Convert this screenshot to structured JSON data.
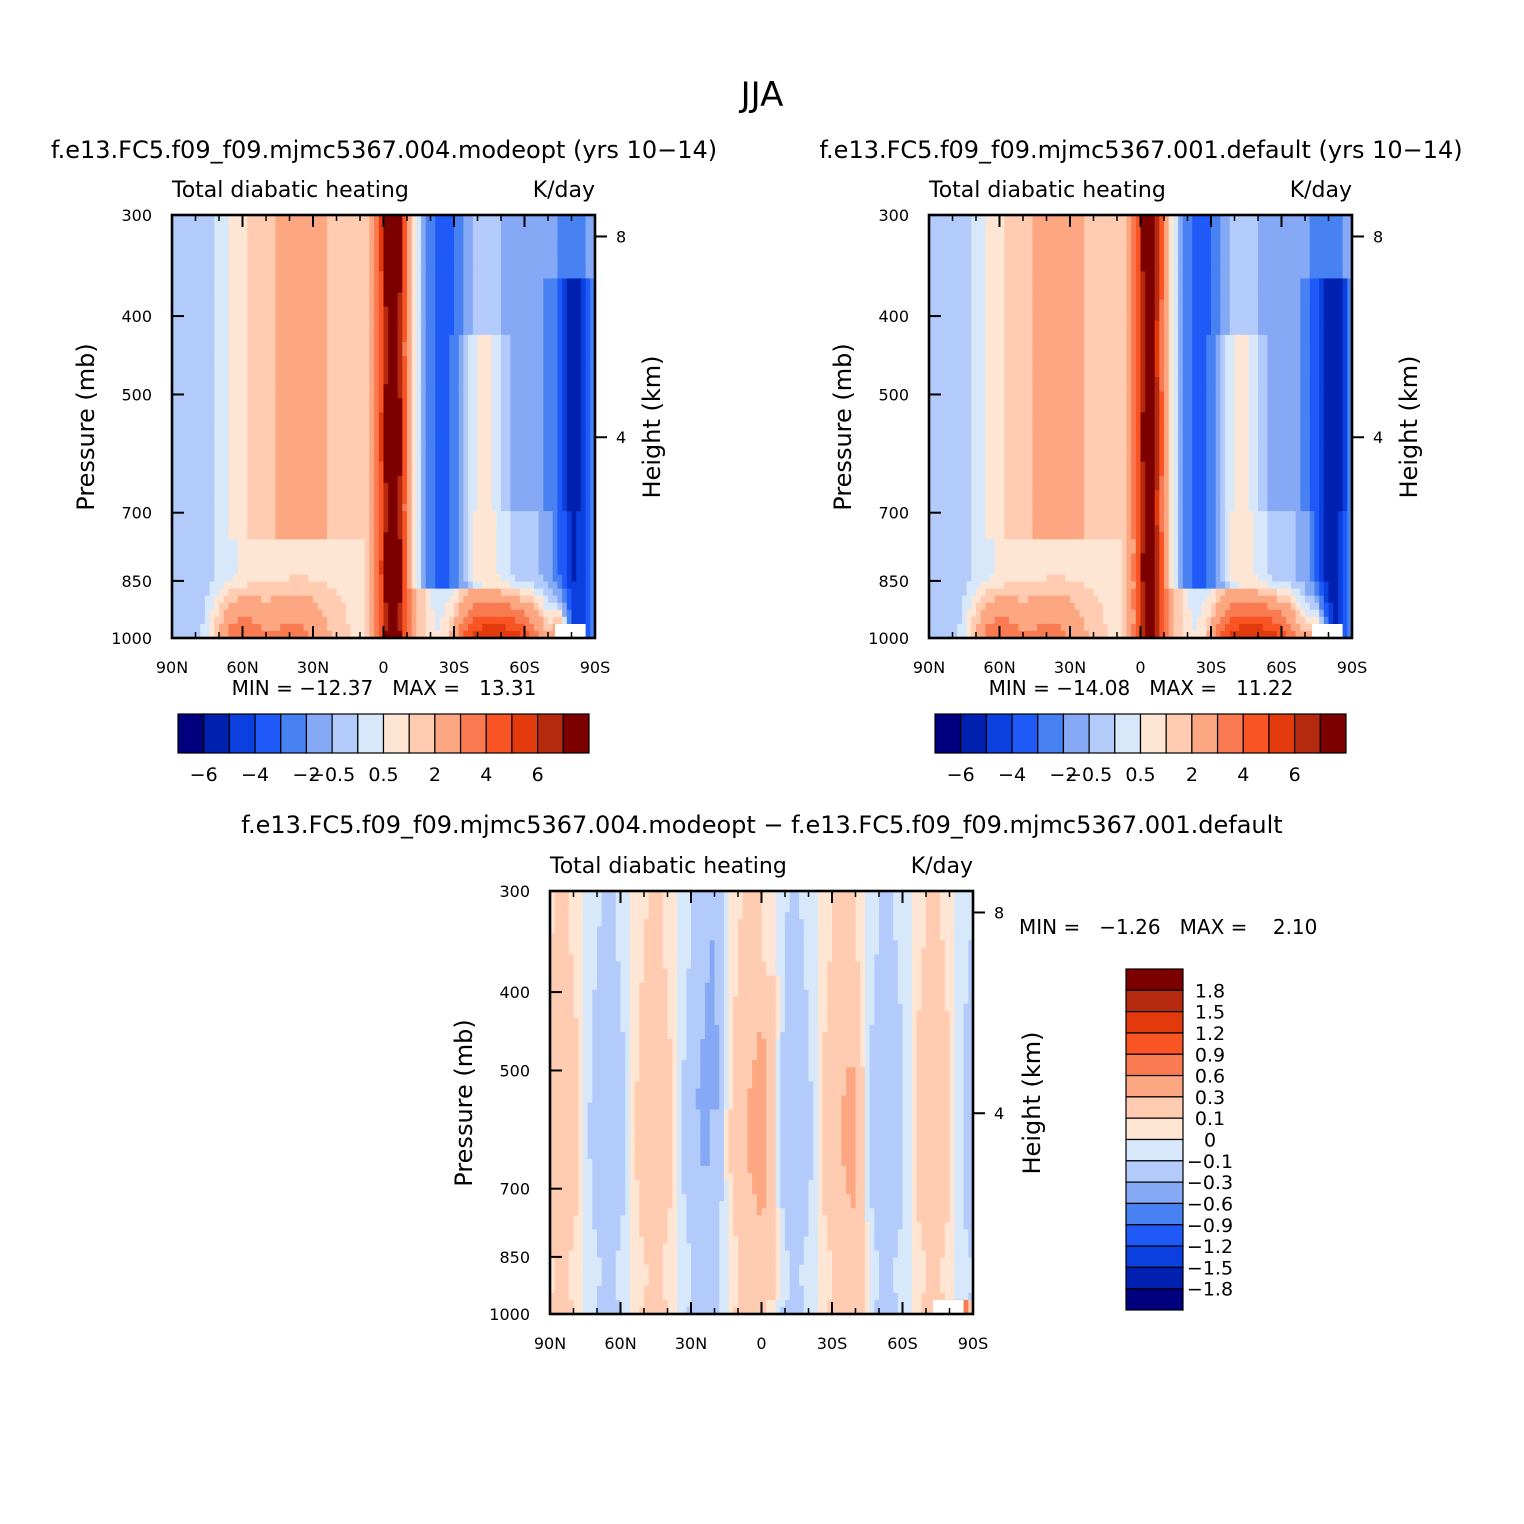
{
  "figure": {
    "title": "JJA",
    "colors": {
      "div_full": [
        "#00007f",
        "#0021b0",
        "#0b3fe0",
        "#1f5af8",
        "#4882f2",
        "#85a9f5",
        "#b3cbfb",
        "#d8e8fb",
        "#ffe6d4",
        "#ffcbb1",
        "#fca781",
        "#fa7b51",
        "#f85424",
        "#e23a0c",
        "#b52a0f",
        "#7c0000"
      ],
      "div_diff": [
        "#00007f",
        "#0021b0",
        "#0b3fe0",
        "#1f5af8",
        "#4882f2",
        "#85a9f5",
        "#b3cbfb",
        "#d8e8fb",
        "#ffe6d4",
        "#ffcbb1",
        "#fca781",
        "#fa7b51",
        "#f85424",
        "#e23a0c",
        "#b52a0f",
        "#7c0000"
      ]
    },
    "color_mapping": "diverging blue-white-red"
  },
  "panels": [
    {
      "case_title": "f.e13.FC5.f09_f09.mjmc5367.004.modeopt (yrs 10−14)",
      "left_label": "Total diabatic heating",
      "right_label": "K/day",
      "ylabel": "Pressure (mb)",
      "ylabel2": "Height (km)",
      "minmax": "MIN = −12.37   MAX =   13.31",
      "colorbar_labels": [
        "−6",
        "−4",
        "−2",
        "−0.5",
        "0.5",
        "2",
        "4",
        "6"
      ]
    },
    {
      "case_title": "f.e13.FC5.f09_f09.mjmc5367.001.default (yrs 10−14)",
      "left_label": "Total diabatic heating",
      "right_label": "K/day",
      "ylabel": "Pressure (mb)",
      "ylabel2": "Height (km)",
      "minmax": "MIN = −14.08   MAX =   11.22",
      "colorbar_labels": [
        "−6",
        "−4",
        "−2",
        "−0.5",
        "0.5",
        "2",
        "4",
        "6"
      ]
    },
    {
      "case_title": "f.e13.FC5.f09_f09.mjmc5367.004.modeopt − f.e13.FC5.f09_f09.mjmc5367.001.default",
      "left_label": "Total diabatic heating",
      "right_label": "K/day",
      "ylabel": "Pressure (mb)",
      "ylabel2": "Height (km)",
      "minmax": "MIN =   −1.26   MAX =    2.10",
      "colorbar_labels": [
        "1.8",
        "1.5",
        "1.2",
        "0.9",
        "0.6",
        "0.3",
        "0.1",
        "0",
        "−0.1",
        "−0.3",
        "−0.6",
        "−0.9",
        "−1.2",
        "−1.5",
        "−1.8"
      ]
    }
  ],
  "chart_data": [
    {
      "type": "heatmap",
      "title": "f.e13.FC5.f09_f09.mjmc5367.004.modeopt (yrs 10−14)",
      "x_ticks": [
        "90N",
        "60N",
        "30N",
        "0",
        "30S",
        "60S",
        "90S"
      ],
      "x_tick_values": [
        90,
        60,
        30,
        0,
        -30,
        -60,
        -90
      ],
      "y_ticks": [
        "300",
        "400",
        "500",
        "700",
        "850",
        "1000"
      ],
      "y_tick_values": [
        300,
        400,
        500,
        700,
        850,
        1000
      ],
      "y_scale": "log",
      "y2_ticks": [
        "8",
        "4"
      ],
      "y2_tick_values": [
        8,
        4
      ],
      "xlim": [
        90,
        -90
      ],
      "ylim": [
        1000,
        300
      ],
      "min": -12.37,
      "max": 13.31,
      "contour_levels": [
        -6,
        -5,
        -4,
        -3,
        -2,
        -1,
        -0.5,
        0,
        0.5,
        1,
        2,
        3,
        4,
        5,
        6
      ],
      "features": [
        {
          "kind": "heating",
          "lat": -5,
          "p_top": 300,
          "p_bottom": 1000,
          "peak": 6
        },
        {
          "kind": "heating",
          "lat": -55,
          "p_top": 830,
          "p_bottom": 1000,
          "peak": 6
        },
        {
          "kind": "heating",
          "lat": 62,
          "p_top": 820,
          "p_bottom": 1000,
          "peak": 3
        },
        {
          "kind": "cooling",
          "lat": -25,
          "p_top": 300,
          "p_bottom": 880,
          "peak": -2
        },
        {
          "kind": "cooling",
          "lat": -80,
          "p_top": 350,
          "p_bottom": 980,
          "peak": -5
        }
      ]
    },
    {
      "type": "heatmap",
      "title": "f.e13.FC5.f09_f09.mjmc5367.001.default (yrs 10−14)",
      "x_ticks": [
        "90N",
        "60N",
        "30N",
        "0",
        "30S",
        "60S",
        "90S"
      ],
      "x_tick_values": [
        90,
        60,
        30,
        0,
        -30,
        -60,
        -90
      ],
      "y_ticks": [
        "300",
        "400",
        "500",
        "700",
        "850",
        "1000"
      ],
      "y_tick_values": [
        300,
        400,
        500,
        700,
        850,
        1000
      ],
      "y_scale": "log",
      "y2_ticks": [
        "8",
        "4"
      ],
      "y2_tick_values": [
        8,
        4
      ],
      "xlim": [
        90,
        -90
      ],
      "ylim": [
        1000,
        300
      ],
      "min": -14.08,
      "max": 11.22,
      "contour_levels": [
        -6,
        -5,
        -4,
        -3,
        -2,
        -1,
        -0.5,
        0,
        0.5,
        1,
        2,
        3,
        4,
        5,
        6
      ],
      "features": [
        {
          "kind": "heating",
          "lat": -5,
          "p_top": 300,
          "p_bottom": 1000,
          "peak": 5
        },
        {
          "kind": "heating",
          "lat": -55,
          "p_top": 830,
          "p_bottom": 1000,
          "peak": 6
        },
        {
          "kind": "heating",
          "lat": 62,
          "p_top": 820,
          "p_bottom": 1000,
          "peak": 3
        },
        {
          "kind": "cooling",
          "lat": -25,
          "p_top": 300,
          "p_bottom": 880,
          "peak": -2
        },
        {
          "kind": "cooling",
          "lat": -80,
          "p_top": 350,
          "p_bottom": 980,
          "peak": -5
        }
      ]
    },
    {
      "type": "heatmap",
      "title": "f.e13.FC5.f09_f09.mjmc5367.004.modeopt − f.e13.FC5.f09_f09.mjmc5367.001.default",
      "x_ticks": [
        "90N",
        "60N",
        "30N",
        "0",
        "30S",
        "60S",
        "90S"
      ],
      "x_tick_values": [
        90,
        60,
        30,
        0,
        -30,
        -60,
        -90
      ],
      "y_ticks": [
        "300",
        "400",
        "500",
        "700",
        "850",
        "1000"
      ],
      "y_tick_values": [
        300,
        400,
        500,
        700,
        850,
        1000
      ],
      "y_scale": "log",
      "y2_ticks": [
        "8",
        "4"
      ],
      "y2_tick_values": [
        8,
        4
      ],
      "xlim": [
        90,
        -90
      ],
      "ylim": [
        1000,
        300
      ],
      "min": -1.26,
      "max": 2.1,
      "contour_levels": [
        -1.8,
        -1.5,
        -1.2,
        -0.9,
        -0.6,
        -0.3,
        -0.1,
        0,
        0.1,
        0.3,
        0.6,
        0.9,
        1.2,
        1.5,
        1.8
      ],
      "features": [
        {
          "kind": "positive",
          "lat": -2,
          "p_top": 380,
          "p_bottom": 950,
          "peak": 0.3
        },
        {
          "kind": "positive",
          "lat": -40,
          "p_top": 500,
          "p_bottom": 950,
          "peak": 0.3
        },
        {
          "kind": "negative",
          "lat": 20,
          "p_top": 300,
          "p_bottom": 560,
          "peak": -0.3
        },
        {
          "kind": "positive",
          "lat": -84,
          "p_top": 960,
          "p_bottom": 1000,
          "peak": 1.8
        }
      ]
    }
  ]
}
